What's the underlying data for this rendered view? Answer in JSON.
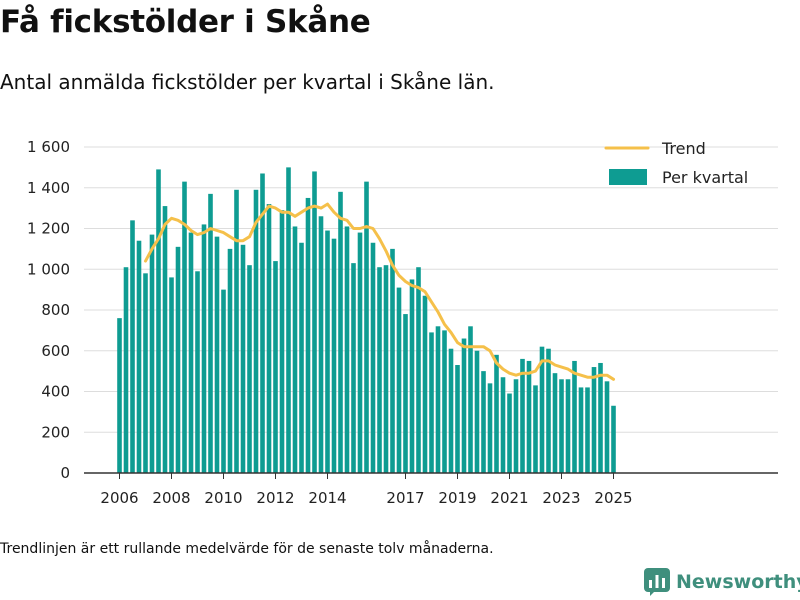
{
  "title": "Få fickstölder i Skåne",
  "subtitle": "Antal anmälda fickstölder per kvartal i Skåne län.",
  "footnote": "Trendlinjen är ett rullande medelvärde för de senaste tolv månaderna.",
  "brand": {
    "name": "Newsworthy",
    "icon": "newsworthy-logo-icon"
  },
  "colors": {
    "bars": "#0e9c92",
    "trend": "#f5c04a",
    "axis": "#333333",
    "grid": "#dddddd"
  },
  "chart_data": {
    "type": "bar",
    "x_start": "2006 Q1",
    "bar_series": "Per kvartal",
    "line_series": "Trend",
    "legend": {
      "position": "top-right",
      "items": [
        "Trend",
        "Per kvartal"
      ]
    },
    "ylim": [
      0,
      1600
    ],
    "y_ticks": [
      0,
      200,
      400,
      600,
      800,
      1000,
      1200,
      1400,
      1600
    ],
    "y_tick_labels": [
      "0",
      "200",
      "400",
      "600",
      "800",
      "1 000",
      "1 200",
      "1 400",
      "1 600"
    ],
    "x_ticks": [
      "2006",
      "2008",
      "2010",
      "2012",
      "2014",
      "2017",
      "2019",
      "2021",
      "2023",
      "2025"
    ],
    "grid": true,
    "values": [
      760,
      1010,
      1240,
      1140,
      980,
      1170,
      1490,
      1310,
      960,
      1110,
      1430,
      1180,
      990,
      1220,
      1370,
      1160,
      900,
      1100,
      1390,
      1120,
      1020,
      1390,
      1470,
      1320,
      1040,
      1290,
      1500,
      1210,
      1130,
      1350,
      1480,
      1260,
      1190,
      1150,
      1380,
      1210,
      1030,
      1180,
      1430,
      1130,
      1010,
      1020,
      1100,
      910,
      780,
      950,
      1010,
      870,
      690,
      720,
      700,
      610,
      530,
      660,
      720,
      600,
      500,
      440,
      580,
      470,
      390,
      460,
      560,
      550,
      430,
      620,
      610,
      490,
      460,
      460,
      550,
      420,
      420,
      520,
      540,
      450,
      330
    ],
    "trend": [
      null,
      null,
      null,
      null,
      1040,
      1100,
      1150,
      1220,
      1250,
      1240,
      1220,
      1190,
      1170,
      1180,
      1200,
      1190,
      1180,
      1160,
      1140,
      1140,
      1160,
      1230,
      1270,
      1310,
      1300,
      1280,
      1280,
      1260,
      1280,
      1300,
      1310,
      1300,
      1320,
      1280,
      1250,
      1240,
      1200,
      1200,
      1210,
      1200,
      1150,
      1090,
      1020,
      970,
      940,
      920,
      910,
      890,
      840,
      790,
      730,
      690,
      640,
      620,
      620,
      620,
      620,
      600,
      540,
      510,
      490,
      480,
      490,
      490,
      500,
      550,
      550,
      530,
      520,
      510,
      490,
      480,
      470,
      470,
      480,
      480,
      460
    ]
  }
}
